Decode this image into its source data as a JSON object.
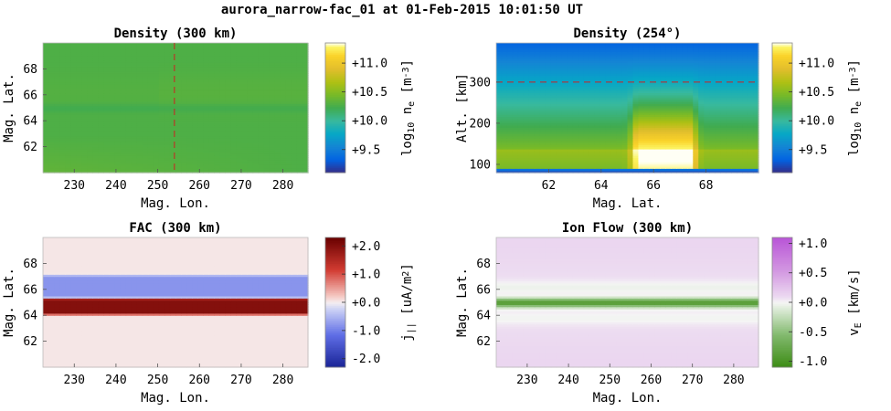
{
  "figure": {
    "suptitle": "aurora_narrow-fac_01 at 01-Feb-2015 10:01:50 UT"
  },
  "chart_data": [
    {
      "type": "heatmap",
      "title": "Density (300 km)",
      "xlabel": "Mag. Lon.",
      "ylabel": "Mag. Lat.",
      "xlim": [
        222.5,
        286
      ],
      "ylim": [
        60,
        70
      ],
      "xticks": [
        230,
        240,
        250,
        260,
        270,
        280
      ],
      "yticks": [
        62,
        64,
        66,
        68
      ],
      "colorbar": {
        "label_parts": [
          "log",
          "10",
          " n",
          "e",
          " [m",
          "-3",
          "]"
        ],
        "ticks": [
          "+9.5",
          "+10.0",
          "+10.5",
          "+11.0"
        ],
        "tick_values": [
          9.5,
          10.0,
          10.5,
          11.0
        ],
        "range": [
          9.1,
          11.35
        ],
        "colormap": "parula"
      },
      "reference_line": {
        "orientation": "vertical",
        "value": 254,
        "color": "#cc2222"
      },
      "field": {
        "base_log_ne": 10.28,
        "trough_lat": 65.0,
        "trough_depth": 0.06,
        "gradient_low_lat": 0.08
      }
    },
    {
      "type": "heatmap",
      "title": "Density (254°)",
      "xlabel": "Mag. Lat.",
      "ylabel": "Alt. [km]",
      "xlim": [
        60,
        70
      ],
      "ylim": [
        80,
        395
      ],
      "xticks": [
        62,
        64,
        66,
        68
      ],
      "yticks": [
        100,
        200,
        300
      ],
      "colorbar": {
        "label_parts": [
          "log",
          "10",
          " n",
          "e",
          " [m",
          "-3",
          "]"
        ],
        "ticks": [
          "+9.5",
          "+10.0",
          "+10.5",
          "+11.0"
        ],
        "tick_values": [
          9.5,
          10.0,
          10.5,
          11.0
        ],
        "range": [
          9.1,
          11.35
        ],
        "colormap": "parula"
      },
      "reference_line": {
        "orientation": "horizontal",
        "value": 300,
        "color": "#cc2222"
      },
      "field": {
        "peak_alt": 140,
        "enhancement_lat_range": [
          65.4,
          67.4
        ],
        "enhancement_peak": 11.3,
        "bottom_low_alt": 90
      }
    },
    {
      "type": "heatmap",
      "title": "FAC (300 km)",
      "xlabel": "Mag. Lon.",
      "ylabel": "Mag. Lat.",
      "xlim": [
        222.5,
        286
      ],
      "ylim": [
        60,
        70
      ],
      "xticks": [
        230,
        240,
        250,
        260,
        270,
        280
      ],
      "yticks": [
        62,
        64,
        66,
        68
      ],
      "colorbar": {
        "label_parts": [
          "j",
          "||",
          " [uA/m",
          "2",
          "]"
        ],
        "ticks": [
          "+2.0",
          "+1.0",
          "+0.0",
          "-1.0",
          "-2.0"
        ],
        "tick_values": [
          2.0,
          1.0,
          0.0,
          -1.0,
          -2.0
        ],
        "range": [
          -2.3,
          2.3
        ],
        "colormap": "red-white-blue"
      },
      "bands": [
        {
          "lat_min": 64.2,
          "lat_max": 65.2,
          "value": 2.0
        },
        {
          "lat_min": 65.5,
          "lat_max": 67.0,
          "value": -0.8
        }
      ],
      "background_value": 0.05
    },
    {
      "type": "heatmap",
      "title": "Ion Flow (300 km)",
      "xlabel": "Mag. Lon.",
      "ylabel": "Mag. Lat.",
      "xlim": [
        222.5,
        286
      ],
      "ylim": [
        60,
        70
      ],
      "xticks": [
        230,
        240,
        250,
        260,
        270,
        280
      ],
      "yticks": [
        62,
        64,
        66,
        68
      ],
      "colorbar": {
        "label_parts": [
          "v",
          "E",
          " [km/s]"
        ],
        "ticks": [
          "+1.0",
          "+0.5",
          "+0.0",
          "-0.5",
          "-1.0"
        ],
        "tick_values": [
          1.0,
          0.5,
          0.0,
          -0.5,
          -1.0
        ],
        "range": [
          -1.1,
          1.1
        ],
        "colormap": "purple-white-green"
      },
      "bands": [
        {
          "lat_center": 65.0,
          "halfwidth": 0.35,
          "value": -0.9
        }
      ],
      "background_value": 0.12
    }
  ]
}
